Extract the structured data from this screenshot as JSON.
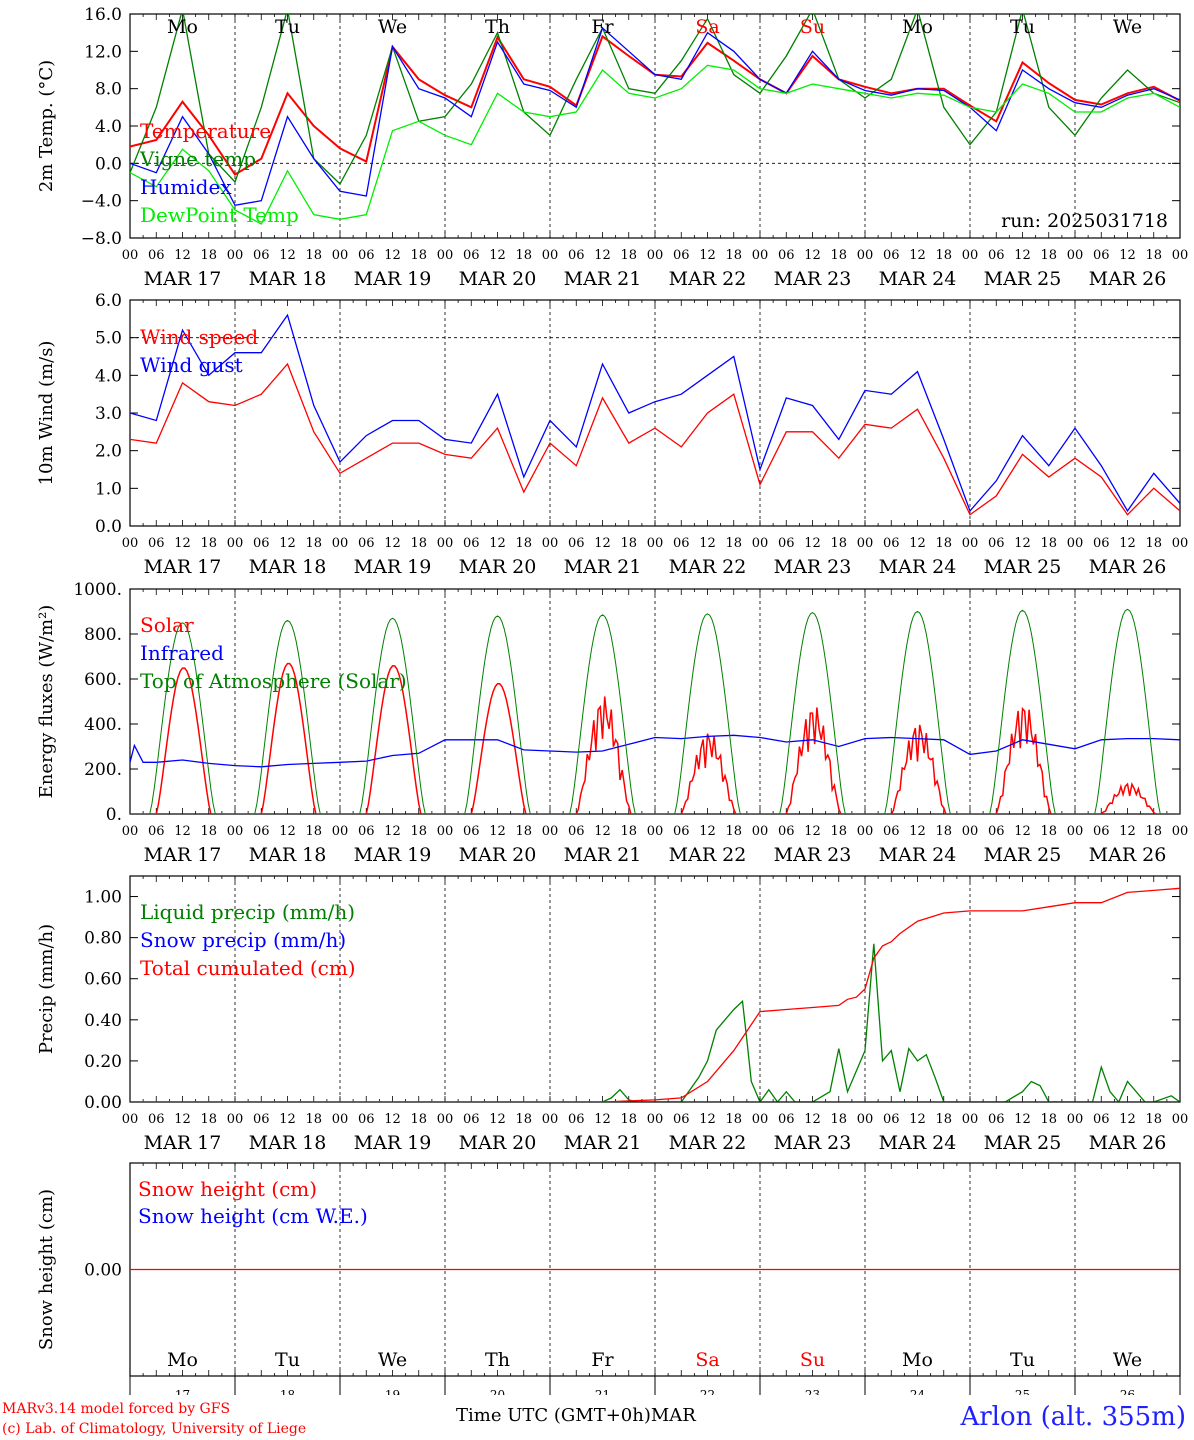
{
  "run_label": "run: 2025031718",
  "footer": {
    "credit1": "MARv3.14 model forced by GFS",
    "credit2": "(c) Lab. of Climatology, University of Liege",
    "time_label": "Time UTC (GMT+0h)",
    "month": "MAR",
    "station": "Arlon (alt. 355m)"
  },
  "hour_ticks": [
    "00",
    "06",
    "12",
    "18"
  ],
  "final_hour": "00",
  "date_labels": [
    "MAR 17",
    "MAR 18",
    "MAR 19",
    "MAR 20",
    "MAR 21",
    "MAR 22",
    "MAR 23",
    "MAR 24",
    "MAR 25",
    "MAR 26"
  ],
  "weekdays": [
    "Mo",
    "Tu",
    "We",
    "Th",
    "Fr",
    "Sa",
    "Su",
    "Mo",
    "Tu",
    "We"
  ],
  "weekday_colors": [
    "#000000",
    "#000000",
    "#000000",
    "#000000",
    "#000000",
    "#ff0000",
    "#ff0000",
    "#000000",
    "#000000",
    "#000000"
  ],
  "day_numbers": [
    "17",
    "18",
    "19",
    "20",
    "21",
    "22",
    "23",
    "24",
    "25",
    "26"
  ],
  "chart_data": [
    {
      "type": "line",
      "ylabel": "2m Temp. (°C)",
      "ylim": [
        -8,
        16
      ],
      "yticks": [
        "−8.0",
        "−4.0",
        "0.0",
        "4.0",
        "8.0",
        "12.0",
        "16.0"
      ],
      "ytick_values": [
        -8,
        -4,
        0,
        4,
        8,
        12,
        16
      ],
      "x_unit": "hours since MAR 17 00 UTC",
      "xlim": [
        0,
        240
      ],
      "ref_line": 0,
      "series": [
        {
          "name": "Temperature",
          "color": "#ff0000",
          "x": [
            0,
            6,
            12,
            18,
            24,
            30,
            36,
            42,
            48,
            54,
            60,
            66,
            72,
            78,
            84,
            90,
            96,
            102,
            108,
            114,
            120,
            126,
            132,
            138,
            144,
            150,
            156,
            162,
            168,
            174,
            180,
            186,
            192,
            198,
            204,
            210,
            216,
            222,
            228,
            234,
            240
          ],
          "values": [
            1.8,
            2.5,
            6.6,
            3.0,
            -1.2,
            0.5,
            7.5,
            4.0,
            1.6,
            0.2,
            12.5,
            9.0,
            7.3,
            6.0,
            13.5,
            9.0,
            8.2,
            6.2,
            13.6,
            11.5,
            9.5,
            9.3,
            12.9,
            11.0,
            9.0,
            7.5,
            11.5,
            9.0,
            8.2,
            7.5,
            8.0,
            8.0,
            6.2,
            4.5,
            10.8,
            8.6,
            6.8,
            6.3,
            7.5,
            8.2,
            6.7
          ]
        },
        {
          "name": "Vigne temp",
          "color": "#008000",
          "x": [
            0,
            6,
            12,
            18,
            24,
            30,
            36,
            42,
            48,
            54,
            60,
            66,
            72,
            78,
            84,
            90,
            96,
            102,
            108,
            114,
            120,
            126,
            132,
            138,
            144,
            150,
            156,
            162,
            168,
            174,
            180,
            186,
            192,
            198,
            204,
            210,
            216,
            222,
            228,
            234,
            240
          ],
          "values": [
            -1.0,
            6.0,
            16.5,
            1.0,
            -2.0,
            6.0,
            16.5,
            0.5,
            -2.2,
            3.0,
            12.5,
            4.5,
            5.0,
            8.5,
            14.0,
            5.5,
            3.0,
            9.0,
            14.5,
            8.0,
            7.5,
            11.0,
            15.5,
            9.5,
            7.5,
            11.5,
            16.5,
            9.0,
            7.0,
            9.0,
            16.5,
            6.0,
            2.0,
            5.5,
            16.5,
            6.0,
            3.0,
            7.0,
            10.0,
            7.5,
            6.5
          ]
        },
        {
          "name": "Humidex",
          "color": "#0000ff",
          "x": [
            0,
            6,
            12,
            18,
            24,
            30,
            36,
            42,
            48,
            54,
            60,
            66,
            72,
            78,
            84,
            90,
            96,
            102,
            108,
            114,
            120,
            126,
            132,
            138,
            144,
            150,
            156,
            162,
            168,
            174,
            180,
            186,
            192,
            198,
            204,
            210,
            216,
            222,
            228,
            234,
            240
          ],
          "values": [
            0.0,
            -1.0,
            5.0,
            1.0,
            -4.5,
            -4.0,
            5.0,
            0.5,
            -3.0,
            -3.5,
            12.5,
            8.0,
            7.0,
            5.0,
            13.0,
            8.5,
            7.8,
            6.0,
            14.5,
            12.0,
            9.5,
            9.0,
            14.0,
            12.0,
            9.0,
            7.5,
            12.0,
            9.0,
            7.8,
            7.3,
            8.0,
            7.8,
            6.0,
            3.5,
            10.0,
            8.0,
            6.5,
            6.0,
            7.3,
            8.0,
            6.8
          ]
        },
        {
          "name": "DewPoint Temp",
          "color": "#00ee00",
          "x": [
            0,
            6,
            12,
            18,
            24,
            30,
            36,
            42,
            48,
            54,
            60,
            66,
            72,
            78,
            84,
            90,
            96,
            102,
            108,
            114,
            120,
            126,
            132,
            138,
            144,
            150,
            156,
            162,
            168,
            174,
            180,
            186,
            192,
            198,
            204,
            210,
            216,
            222,
            228,
            234,
            240
          ],
          "values": [
            -1.0,
            -2.5,
            1.5,
            -0.8,
            -5.0,
            -6.5,
            -0.8,
            -5.5,
            -6.0,
            -5.5,
            3.5,
            4.5,
            3.0,
            2.0,
            7.5,
            5.5,
            5.0,
            5.5,
            10.0,
            7.5,
            7.0,
            8.0,
            10.5,
            10.0,
            8.0,
            7.5,
            8.5,
            8.0,
            7.5,
            7.0,
            7.5,
            7.3,
            6.0,
            5.5,
            8.5,
            7.5,
            5.5,
            5.5,
            7.0,
            7.5,
            6.0
          ]
        }
      ]
    },
    {
      "type": "line",
      "ylabel": "10m Wind (m/s)",
      "ylim": [
        0,
        6
      ],
      "yticks": [
        "0.0",
        "1.0",
        "2.0",
        "3.0",
        "4.0",
        "5.0",
        "6.0"
      ],
      "ytick_values": [
        0,
        1,
        2,
        3,
        4,
        5,
        6
      ],
      "x_unit": "hours since MAR 17 00 UTC",
      "xlim": [
        0,
        240
      ],
      "ref_line": 5,
      "series": [
        {
          "name": "Wind speed",
          "color": "#ff0000",
          "x": [
            0,
            6,
            12,
            18,
            24,
            30,
            36,
            42,
            48,
            54,
            60,
            66,
            72,
            78,
            84,
            90,
            96,
            102,
            108,
            114,
            120,
            126,
            132,
            138,
            144,
            150,
            156,
            162,
            168,
            174,
            180,
            186,
            192,
            198,
            204,
            210,
            216,
            222,
            228,
            234,
            240
          ],
          "values": [
            2.3,
            2.2,
            3.8,
            3.3,
            3.2,
            3.5,
            4.3,
            2.5,
            1.4,
            1.8,
            2.2,
            2.2,
            1.9,
            1.8,
            2.6,
            0.9,
            2.2,
            1.6,
            3.4,
            2.2,
            2.6,
            2.1,
            3.0,
            3.5,
            1.1,
            2.5,
            2.5,
            1.8,
            2.7,
            2.6,
            3.1,
            1.8,
            0.3,
            0.8,
            1.9,
            1.3,
            1.8,
            1.3,
            0.3,
            1.0,
            0.4
          ]
        },
        {
          "name": "Wind gust",
          "color": "#0000ff",
          "x": [
            0,
            6,
            12,
            18,
            24,
            30,
            36,
            42,
            48,
            54,
            60,
            66,
            72,
            78,
            84,
            90,
            96,
            102,
            108,
            114,
            120,
            126,
            132,
            138,
            144,
            150,
            156,
            162,
            168,
            174,
            180,
            186,
            192,
            198,
            204,
            210,
            216,
            222,
            228,
            234,
            240
          ],
          "values": [
            3.0,
            2.8,
            5.2,
            4.0,
            4.6,
            4.6,
            5.6,
            3.2,
            1.7,
            2.4,
            2.8,
            2.8,
            2.3,
            2.2,
            3.5,
            1.3,
            2.8,
            2.1,
            4.3,
            3.0,
            3.3,
            3.5,
            4.0,
            4.5,
            1.5,
            3.4,
            3.2,
            2.3,
            3.6,
            3.5,
            4.1,
            2.3,
            0.4,
            1.2,
            2.4,
            1.6,
            2.6,
            1.6,
            0.4,
            1.4,
            0.6
          ]
        }
      ]
    },
    {
      "type": "line",
      "ylabel": "Energy fluxes (W/m²)",
      "ylim": [
        0,
        1000
      ],
      "yticks": [
        "0.",
        "200.",
        "400.",
        "600.",
        "800.",
        "1000."
      ],
      "ytick_values": [
        0,
        200,
        400,
        600,
        800,
        1000
      ],
      "x_unit": "hours since MAR 17 00 UTC",
      "xlim": [
        0,
        240
      ],
      "daily_peaks": {
        "Solar": [
          650,
          670,
          660,
          580,
          530,
          370,
          490,
          410,
          500,
          140
        ],
        "Top of Atmosphere (Solar)": [
          850,
          860,
          870,
          880,
          885,
          890,
          895,
          900,
          905,
          910
        ]
      },
      "series": [
        {
          "name": "Solar",
          "color": "#ff0000"
        },
        {
          "name": "Infrared",
          "color": "#0000ff",
          "x": [
            0,
            1,
            3,
            6,
            12,
            18,
            24,
            30,
            36,
            42,
            48,
            54,
            60,
            66,
            72,
            78,
            84,
            90,
            96,
            102,
            108,
            114,
            120,
            126,
            132,
            138,
            144,
            150,
            156,
            162,
            168,
            174,
            180,
            186,
            192,
            198,
            204,
            210,
            216,
            222,
            228,
            234,
            240
          ],
          "values": [
            230,
            305,
            230,
            230,
            240,
            225,
            215,
            210,
            220,
            225,
            230,
            235,
            260,
            270,
            330,
            330,
            330,
            285,
            280,
            275,
            280,
            310,
            340,
            335,
            345,
            350,
            340,
            320,
            330,
            300,
            335,
            340,
            335,
            330,
            265,
            280,
            330,
            310,
            290,
            330,
            335,
            335,
            330
          ]
        },
        {
          "name": "Top of Atmosphere (Solar)",
          "color": "#008000"
        }
      ]
    },
    {
      "type": "line",
      "ylabel": "Precip (mm/h)",
      "ylim": [
        0,
        1.1
      ],
      "yticks": [
        "0.00",
        "0.20",
        "0.40",
        "0.60",
        "0.80",
        "1.00"
      ],
      "ytick_values": [
        0,
        0.2,
        0.4,
        0.6,
        0.8,
        1.0
      ],
      "x_unit": "hours since MAR 17 00 UTC",
      "xlim": [
        0,
        240
      ],
      "series": [
        {
          "name": "Liquid precip (mm/h)",
          "color": "#008000",
          "x": [
            0,
            108,
            110,
            112,
            114,
            116,
            120,
            126,
            130,
            132,
            134,
            136,
            138,
            140,
            141,
            142,
            144,
            146,
            148,
            150,
            152,
            156,
            160,
            162,
            164,
            168,
            170,
            172,
            174,
            176,
            178,
            180,
            182,
            184,
            186,
            190,
            200,
            204,
            206,
            208,
            210,
            216,
            220,
            222,
            224,
            226,
            228,
            232,
            234,
            238,
            240
          ],
          "values": [
            0,
            0,
            0.02,
            0.06,
            0.01,
            0,
            0,
            0,
            0.12,
            0.2,
            0.35,
            0.4,
            0.45,
            0.49,
            0.3,
            0.1,
            0,
            0.06,
            0,
            0.05,
            0,
            0,
            0.05,
            0.26,
            0.05,
            0.25,
            0.77,
            0.2,
            0.25,
            0.05,
            0.26,
            0.2,
            0.23,
            0.12,
            0,
            0,
            0,
            0.05,
            0.1,
            0.08,
            0,
            0,
            0,
            0.17,
            0.05,
            0,
            0.1,
            0,
            0,
            0.03,
            0
          ]
        },
        {
          "name": "Snow precip (mm/h)",
          "color": "#0000ff",
          "x": [
            0,
            240
          ],
          "values": [
            0,
            0
          ]
        },
        {
          "name": "Total cumulated (cm)",
          "color": "#ff0000",
          "x": [
            0,
            108,
            120,
            126,
            132,
            138,
            144,
            150,
            156,
            162,
            164,
            166,
            168,
            170,
            172,
            174,
            176,
            180,
            186,
            192,
            204,
            210,
            216,
            222,
            228,
            234,
            240
          ],
          "values": [
            0,
            0,
            0.01,
            0.02,
            0.1,
            0.25,
            0.44,
            0.45,
            0.46,
            0.47,
            0.5,
            0.51,
            0.55,
            0.7,
            0.76,
            0.78,
            0.82,
            0.88,
            0.92,
            0.93,
            0.93,
            0.95,
            0.97,
            0.97,
            1.02,
            1.03,
            1.04
          ]
        }
      ]
    },
    {
      "type": "line",
      "ylabel": "Snow height (cm)",
      "ylim": [
        -1,
        1
      ],
      "yticks": [
        "0.00"
      ],
      "ytick_values": [
        0
      ],
      "x_unit": "hours since MAR 17 00 UTC",
      "xlim": [
        0,
        240
      ],
      "series": [
        {
          "name": "Snow height (cm)",
          "color": "#ff0000",
          "x": [
            0,
            240
          ],
          "values": [
            0,
            0
          ]
        },
        {
          "name": "Snow height (cm W.E.)",
          "color": "#0000ff"
        }
      ]
    }
  ]
}
